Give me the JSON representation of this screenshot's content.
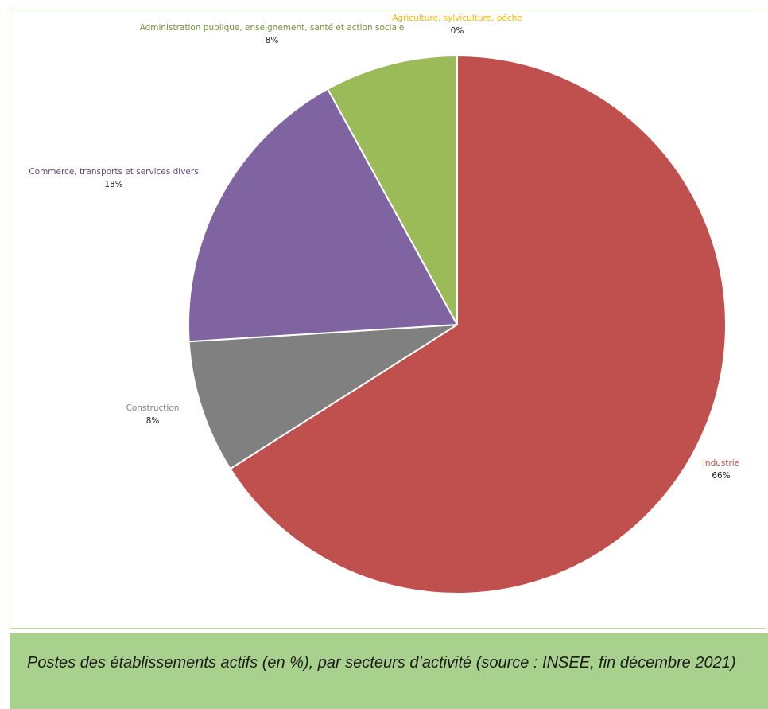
{
  "chart_data": {
    "type": "pie",
    "slices": [
      {
        "label": "Industrie",
        "value": 66,
        "value_label": "66%",
        "color": "#c0504d",
        "label_color": "#c0504d"
      },
      {
        "label": "Construction",
        "value": 8,
        "value_label": "8%",
        "color": "#808080",
        "label_color": "#808080"
      },
      {
        "label": "Commerce, transports et services divers",
        "value": 18,
        "value_label": "18%",
        "color": "#8064a2",
        "label_color": "#604a7b"
      },
      {
        "label": "Administration publique, enseignement, santé et action sociale",
        "value": 8,
        "value_label": "8%",
        "color": "#9bbb59",
        "label_color": "#76923c"
      },
      {
        "label": "Agriculture, sylviculture, pêche",
        "value": 0,
        "value_label": "0%",
        "color": "#f5b800",
        "label_color": "#f5b800"
      }
    ]
  },
  "caption": "Postes des établissements actifs (en %), par secteurs d’activité (source : INSEE, fin décembre 2021)",
  "colors": {
    "frame_border": "#b9d99a",
    "caption_bg": "#a9d18e"
  }
}
